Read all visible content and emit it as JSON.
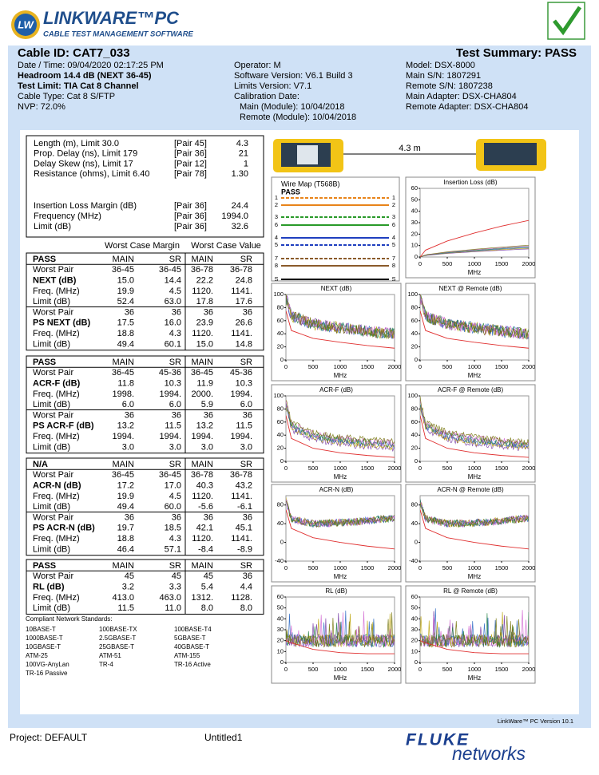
{
  "header": {
    "logo": "LW",
    "title": "LINKWARE™PC",
    "subtitle": "CABLE TEST MANAGEMENT SOFTWARE"
  },
  "summary": {
    "cable_id": "Cable ID: CAT7_033",
    "test_summary": "Test Summary: PASS",
    "left": [
      "Date / Time: 09/04/2020  02:17:25 PM",
      "Headroom 14.4 dB (NEXT 36-45)",
      "Test Limit: TIA Cat 8 Channel",
      "Cable Type: Cat 8 S/FTP",
      "NVP: 72.0%"
    ],
    "middle": [
      "Operator: M",
      "Software Version: V6.1 Build 3",
      "Limits Version: V7.1",
      "Calibration Date:",
      "Main (Module): 10/04/2018",
      "Remote (Module): 10/04/2018"
    ],
    "right": [
      "Model: DSX-8000",
      "Main S/N: 1807291",
      "Remote S/N: 1807238",
      "Main Adapter: DSX-CHA804",
      "Remote Adapter: DSX-CHA804"
    ]
  },
  "measurements": {
    "rows": [
      [
        "Length (m), Limit 30.0",
        "[Pair 45]",
        "4.3"
      ],
      [
        "Prop. Delay (ns), Limit 179",
        "[Pair 36]",
        "21"
      ],
      [
        "Delay Skew (ns), Limit 17",
        "[Pair 12]",
        "1"
      ],
      [
        "Resistance (ohms), Limit 6.40",
        "[Pair 78]",
        "1.30"
      ]
    ],
    "il_rows": [
      [
        "Insertion Loss Margin (dB)",
        "[Pair 36]",
        "24.4"
      ],
      [
        "Frequency (MHz)",
        "[Pair 36]",
        "1994.0"
      ],
      [
        "Limit (dB)",
        "[Pair 36]",
        "32.6"
      ]
    ]
  },
  "table_headers": [
    "Worst Case Margin",
    "Worst Case Value"
  ],
  "sections": [
    {
      "header": [
        "PASS",
        "MAIN",
        "SR",
        "MAIN",
        "SR"
      ],
      "rows": [
        [
          "Worst Pair",
          "36-45",
          "36-45",
          "36-78",
          "36-78"
        ],
        [
          "NEXT (dB)",
          "15.0",
          "14.4",
          "22.2",
          "24.8"
        ],
        [
          "Freq. (MHz)",
          "19.9",
          "4.5",
          "1120.",
          "1141."
        ],
        [
          "Limit (dB)",
          "52.4",
          "63.0",
          "17.8",
          "17.6"
        ],
        [
          "Worst Pair",
          "36",
          "36",
          "36",
          "36"
        ],
        [
          "PS NEXT (dB)",
          "17.5",
          "16.0",
          "23.9",
          "26.6"
        ],
        [
          "Freq. (MHz)",
          "18.8",
          "4.3",
          "1120.",
          "1141."
        ],
        [
          "Limit (dB)",
          "49.4",
          "60.1",
          "15.0",
          "14.8"
        ]
      ]
    },
    {
      "header": [
        "PASS",
        "MAIN",
        "SR",
        "MAIN",
        "SR"
      ],
      "rows": [
        [
          "Worst Pair",
          "36-45",
          "45-36",
          "36-45",
          "45-36"
        ],
        [
          "ACR-F (dB)",
          "11.8",
          "10.3",
          "11.9",
          "10.3"
        ],
        [
          "Freq. (MHz)",
          "1998.",
          "1994.",
          "2000.",
          "1994."
        ],
        [
          "Limit (dB)",
          "6.0",
          "6.0",
          "5.9",
          "6.0"
        ],
        [
          "Worst Pair",
          "36",
          "36",
          "36",
          "36"
        ],
        [
          "PS ACR-F (dB)",
          "13.2",
          "11.5",
          "13.2",
          "11.5"
        ],
        [
          "Freq. (MHz)",
          "1994.",
          "1994.",
          "1994.",
          "1994."
        ],
        [
          "Limit (dB)",
          "3.0",
          "3.0",
          "3.0",
          "3.0"
        ]
      ]
    },
    {
      "header": [
        "N/A",
        "MAIN",
        "SR",
        "MAIN",
        "SR"
      ],
      "rows": [
        [
          "Worst Pair",
          "36-45",
          "36-45",
          "36-78",
          "36-78"
        ],
        [
          "ACR-N (dB)",
          "17.2",
          "17.0",
          "40.3",
          "43.2"
        ],
        [
          "Freq. (MHz)",
          "19.9",
          "4.5",
          "1120.",
          "1141."
        ],
        [
          "Limit (dB)",
          "49.4",
          "60.0",
          "-5.6",
          "-6.1"
        ],
        [
          "Worst Pair",
          "36",
          "36",
          "36",
          "36"
        ],
        [
          "PS ACR-N (dB)",
          "19.7",
          "18.5",
          "42.1",
          "45.1"
        ],
        [
          "Freq. (MHz)",
          "18.8",
          "4.3",
          "1120.",
          "1141."
        ],
        [
          "Limit (dB)",
          "46.4",
          "57.1",
          "-8.4",
          "-8.9"
        ]
      ]
    },
    {
      "header": [
        "PASS",
        "MAIN",
        "SR",
        "MAIN",
        "SR"
      ],
      "rows": [
        [
          "Worst Pair",
          "45",
          "45",
          "45",
          "36"
        ],
        [
          "RL (dB)",
          "3.2",
          "3.3",
          "5.4",
          "4.4"
        ],
        [
          "Freq. (MHz)",
          "413.0",
          "463.0",
          "1312.",
          "1128."
        ],
        [
          "Limit (dB)",
          "11.5",
          "11.0",
          "8.0",
          "8.0"
        ]
      ]
    }
  ],
  "standards": {
    "title": "Compliant Network Standards:",
    "items": [
      "10BASE-T",
      "100BASE-TX",
      "100BASE-T4",
      "1000BASE-T",
      "2.5GBASE-T",
      "5GBASE-T",
      "10GBASE-T",
      "25GBASE-T",
      "40GBASE-T",
      "ATM-25",
      "ATM-51",
      "ATM-155",
      "100VG-AnyLan",
      "TR-4",
      "TR-16 Active",
      "TR-16 Passive"
    ]
  },
  "link": {
    "length": "4.3 m"
  },
  "wire_map": {
    "title": "Wire Map (T568B)",
    "result": "PASS",
    "pins": [
      "1",
      "2",
      "3",
      "6",
      "4",
      "5",
      "7",
      "8",
      "S"
    ]
  },
  "chart_data": [
    {
      "type": "line",
      "title": "Insertion Loss (dB)",
      "xlabel": "MHz",
      "xlim": [
        0,
        2000
      ],
      "ylim": [
        0,
        60
      ],
      "xticks": [
        0,
        500,
        1000,
        1500,
        2000
      ],
      "yticks": [
        0,
        10,
        20,
        30,
        40,
        50,
        60
      ],
      "series": [
        {
          "color": "#e03030",
          "x": [
            1,
            100,
            500,
            1000,
            1500,
            2000
          ],
          "values": [
            0,
            6,
            14,
            21,
            27,
            32
          ]
        }
      ]
    },
    {
      "type": "line",
      "title": "NEXT (dB)",
      "xlabel": "MHz",
      "xlim": [
        0,
        2000
      ],
      "ylim": [
        0,
        100
      ],
      "xticks": [
        0,
        500,
        1000,
        1500,
        2000
      ],
      "yticks": [
        0,
        20,
        40,
        60,
        80,
        100
      ],
      "series": [
        {
          "color": "#e03030",
          "x": [
            1,
            100,
            500,
            1000,
            1500,
            2000
          ],
          "values": [
            75,
            45,
            33,
            27,
            22,
            18
          ]
        }
      ]
    },
    {
      "type": "line",
      "title": "NEXT @ Remote (dB)",
      "xlabel": "MHz",
      "xlim": [
        0,
        2000
      ],
      "ylim": [
        0,
        100
      ],
      "xticks": [
        0,
        500,
        1000,
        1500,
        2000
      ],
      "yticks": [
        0,
        20,
        40,
        60,
        80,
        100
      ],
      "series": [
        {
          "color": "#e03030",
          "x": [
            1,
            100,
            500,
            1000,
            1500,
            2000
          ],
          "values": [
            75,
            45,
            33,
            27,
            22,
            18
          ]
        }
      ]
    },
    {
      "type": "line",
      "title": "ACR-F (dB)",
      "xlabel": "MHz",
      "xlim": [
        0,
        2000
      ],
      "ylim": [
        0,
        100
      ],
      "xticks": [
        0,
        500,
        1000,
        1500,
        2000
      ],
      "yticks": [
        0,
        20,
        40,
        60,
        80,
        100
      ],
      "series": [
        {
          "color": "#e03030",
          "x": [
            1,
            100,
            500,
            1000,
            1500,
            2000
          ],
          "values": [
            70,
            35,
            20,
            13,
            9,
            6
          ]
        }
      ]
    },
    {
      "type": "line",
      "title": "ACR-F @ Remote (dB)",
      "xlabel": "MHz",
      "xlim": [
        0,
        2000
      ],
      "ylim": [
        0,
        100
      ],
      "xticks": [
        0,
        500,
        1000,
        1500,
        2000
      ],
      "yticks": [
        0,
        20,
        40,
        60,
        80,
        100
      ],
      "series": [
        {
          "color": "#e03030",
          "x": [
            1,
            100,
            500,
            1000,
            1500,
            2000
          ],
          "values": [
            70,
            35,
            20,
            13,
            9,
            6
          ]
        }
      ]
    },
    {
      "type": "line",
      "title": "ACR-N (dB)",
      "xlabel": "MHz",
      "xlim": [
        0,
        2000
      ],
      "ylim": [
        -40,
        100
      ],
      "xticks": [
        0,
        500,
        1000,
        1500,
        2000
      ],
      "yticks": [
        -40,
        0,
        40,
        80
      ],
      "series": [
        {
          "color": "#e03030",
          "x": [
            1,
            100,
            500,
            1000,
            1500,
            2000
          ],
          "values": [
            70,
            30,
            10,
            0,
            -8,
            -14
          ]
        }
      ]
    },
    {
      "type": "line",
      "title": "ACR-N @ Remote (dB)",
      "xlabel": "MHz",
      "xlim": [
        0,
        2000
      ],
      "ylim": [
        -40,
        100
      ],
      "xticks": [
        0,
        500,
        1000,
        1500,
        2000
      ],
      "yticks": [
        -40,
        0,
        40,
        80
      ],
      "series": [
        {
          "color": "#e03030",
          "x": [
            1,
            100,
            500,
            1000,
            1500,
            2000
          ],
          "values": [
            70,
            30,
            10,
            0,
            -8,
            -14
          ]
        }
      ]
    },
    {
      "type": "line",
      "title": "RL (dB)",
      "xlabel": "MHz",
      "xlim": [
        0,
        2000
      ],
      "ylim": [
        0,
        60
      ],
      "xticks": [
        0,
        500,
        1000,
        1500,
        2000
      ],
      "yticks": [
        0,
        10,
        20,
        30,
        40,
        50,
        60
      ],
      "series": [
        {
          "color": "#e03030",
          "x": [
            1,
            100,
            500,
            1000,
            1500,
            2000
          ],
          "values": [
            20,
            18,
            12,
            9,
            8,
            8
          ]
        }
      ]
    },
    {
      "type": "line",
      "title": "RL @ Remote (dB)",
      "xlabel": "MHz",
      "xlim": [
        0,
        2000
      ],
      "ylim": [
        0,
        60
      ],
      "xticks": [
        0,
        500,
        1000,
        1500,
        2000
      ],
      "yticks": [
        0,
        10,
        20,
        30,
        40,
        50,
        60
      ],
      "series": [
        {
          "color": "#e03030",
          "x": [
            1,
            100,
            500,
            1000,
            1500,
            2000
          ],
          "values": [
            20,
            18,
            12,
            9,
            8,
            8
          ]
        }
      ]
    }
  ],
  "footer": {
    "version": "LinkWare™ PC Version 10.1",
    "project": "Project: DEFAULT",
    "file": "Untitled1",
    "brand": "FLUKE",
    "brand_sub": "networks"
  }
}
